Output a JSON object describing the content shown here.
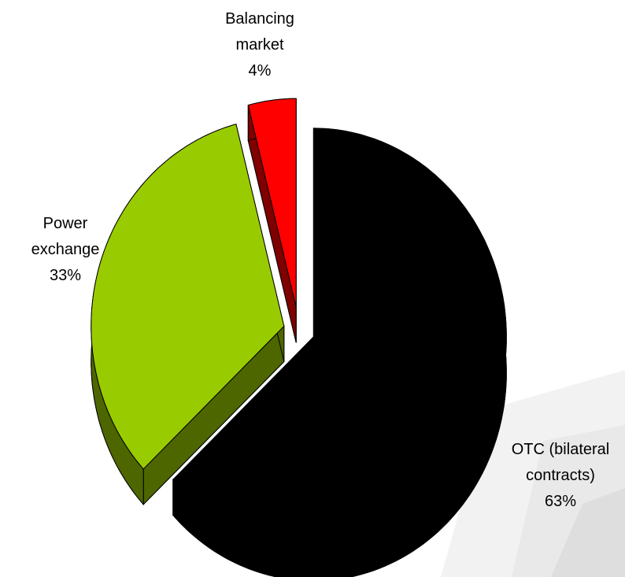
{
  "chart_data": {
    "type": "pie",
    "categories": [
      "OTC (bilateral contracts)",
      "Power exchange",
      "Balancing market"
    ],
    "values": [
      63,
      33,
      4
    ],
    "value_labels": [
      "63%",
      "33%",
      "4%"
    ],
    "colors": [
      "#000000",
      "#99cc00",
      "#ff0000"
    ],
    "side_colors": [
      "#000000",
      "#4d6600",
      "#800000"
    ]
  }
}
